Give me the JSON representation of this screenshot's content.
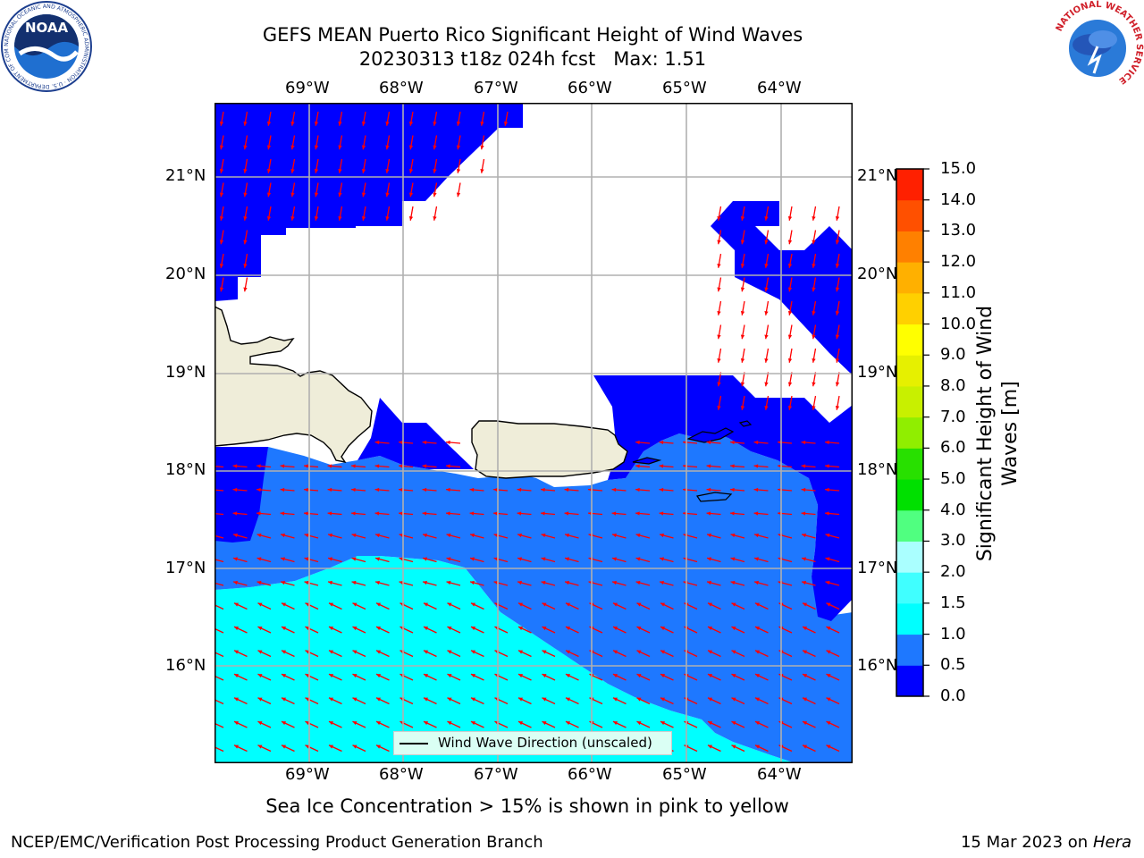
{
  "title": {
    "line1": "GEFS MEAN Puerto Rico Significant Height of Wind Waves",
    "line2": "20230313 t18z 024h fcst   Max: 1.51"
  },
  "map": {
    "lon_labels": [
      "69°W",
      "68°W",
      "67°W",
      "66°W",
      "65°W",
      "64°W"
    ],
    "lat_labels": [
      "21°N",
      "20°N",
      "19°N",
      "18°N",
      "17°N",
      "16°N"
    ],
    "legend_label": "Wind Wave Direction (unscaled)",
    "colors": {
      "land": "#efedd9",
      "no_data": "#ffffff",
      "grid": "#b0b0b0",
      "arrow": "#ff0000"
    }
  },
  "colorbar": {
    "title_line1": "Significant Height of Wind",
    "title_line2": "Waves [m]",
    "ticks": [
      "0.0",
      "0.5",
      "1.0",
      "1.5",
      "2.0",
      "3.0",
      "4.0",
      "5.0",
      "6.0",
      "7.0",
      "8.0",
      "9.0",
      "10.0",
      "11.0",
      "12.0",
      "13.0",
      "14.0",
      "15.0"
    ],
    "colors": [
      "#0000ff",
      "#1e78ff",
      "#00ffff",
      "#40ffff",
      "#aaffff",
      "#50ff80",
      "#00e000",
      "#28e000",
      "#90ee00",
      "#c8f000",
      "#e6f000",
      "#ffff00",
      "#ffd000",
      "#ffb000",
      "#ff8000",
      "#ff5000",
      "#ff2000"
    ]
  },
  "footer": {
    "note": "Sea Ice Concentration > 15% is shown in pink to yellow",
    "left": "NCEP/EMC/Verification Post Processing Product Generation Branch",
    "right_date": "15 Mar 2023 on",
    "right_machine": "Hera"
  },
  "logos": {
    "noaa_label": "NOAA",
    "noaa_ring": "NATIONAL OCEANIC AND ATMOSPHERIC ADMINISTRATION · U.S. DEPARTMENT OF COMMERCE",
    "nws_ring": "NATIONAL WEATHER SERVICE"
  }
}
